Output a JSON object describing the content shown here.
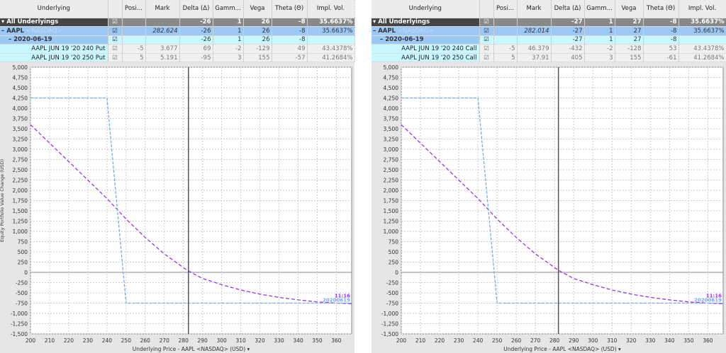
{
  "columns": [
    "Underlying",
    "",
    "Posi...",
    "Mark",
    "Delta (Δ)",
    "Gamm...",
    "Vega",
    "Theta (Θ)",
    "Impl. Vol."
  ],
  "panels": [
    {
      "rows": [
        {
          "type": "all",
          "name": "All Underlyings",
          "check": "☑",
          "pos": "",
          "mark": "",
          "delta": "-26",
          "gamma": "1",
          "vega": "26",
          "theta": "-8",
          "iv": "35.6637%"
        },
        {
          "type": "und",
          "name": "AAPL",
          "exchange": "<NASDAQ>",
          "check": "☑",
          "pos": "",
          "mark": "282.624",
          "delta": "-26",
          "gamma": "1",
          "vega": "26",
          "theta": "-8",
          "iv": "35.6637%"
        },
        {
          "type": "exp",
          "name": "2020-06-19",
          "check": "☑",
          "pos": "",
          "mark": "",
          "delta": "-26",
          "gamma": "1",
          "vega": "26",
          "theta": "-8",
          "iv": ""
        },
        {
          "type": "leg",
          "name": "AAPL JUN 19 '20 240 Put",
          "check": "☑",
          "pos": "-5",
          "mark": "3.677",
          "delta": "69",
          "gamma": "-2",
          "vega": "-129",
          "theta": "49",
          "iv": "43.4378%"
        },
        {
          "type": "leg",
          "name": "AAPL JUN 19 '20 250 Put",
          "check": "☑",
          "pos": "5",
          "mark": "5.191",
          "delta": "-95",
          "gamma": "3",
          "vega": "155",
          "theta": "-57",
          "iv": "41.2684%"
        }
      ],
      "underlying": 282.624,
      "ylabel": "Equity Portfolio Value Change (USD)"
    },
    {
      "rows": [
        {
          "type": "all",
          "name": "All Underlyings",
          "check": "☑",
          "pos": "",
          "mark": "",
          "delta": "-27",
          "gamma": "1",
          "vega": "27",
          "theta": "-8",
          "iv": "35.6637%"
        },
        {
          "type": "und",
          "name": "AAPL",
          "exchange": "<NASDAQ>",
          "check": "☑",
          "pos": "",
          "mark": "282.014",
          "delta": "-27",
          "gamma": "1",
          "vega": "27",
          "theta": "-8",
          "iv": "35.6637%"
        },
        {
          "type": "exp",
          "name": "2020-06-19",
          "check": "☑",
          "pos": "",
          "mark": "",
          "delta": "-27",
          "gamma": "1",
          "vega": "27",
          "theta": "-8",
          "iv": ""
        },
        {
          "type": "leg",
          "name": "AAPL JUN 19 '20 240 Call",
          "check": "☑",
          "pos": "-5",
          "mark": "46.379",
          "delta": "-432",
          "gamma": "-2",
          "vega": "-128",
          "theta": "53",
          "iv": "43.4378%"
        },
        {
          "type": "leg",
          "name": "AAPL JUN 19 '20 250 Call",
          "check": "☑",
          "pos": "5",
          "mark": "37.91",
          "delta": "405",
          "gamma": "3",
          "vega": "155",
          "theta": "-61",
          "iv": "41.2684%"
        }
      ],
      "underlying": 282.014,
      "ylabel": ""
    }
  ],
  "chart_data": [
    {
      "type": "line",
      "xlabel": "Underlying Price - AAPL <NASDAQ> (USD) ▾",
      "ylabel": "Equity Portfolio Value Change (USD)",
      "xlim": [
        200,
        368
      ],
      "ylim": [
        -1500,
        5000
      ],
      "xticks": [
        200,
        210,
        220,
        230,
        240,
        250,
        260,
        270,
        280,
        290,
        300,
        310,
        320,
        330,
        340,
        350,
        360
      ],
      "yticks": [
        5000,
        4750,
        4500,
        4250,
        4000,
        3750,
        3500,
        3250,
        3000,
        2750,
        2500,
        2250,
        2000,
        1750,
        1500,
        1250,
        1000,
        750,
        500,
        250,
        0,
        -250,
        -500,
        -750,
        -1000,
        -1250,
        -1500
      ],
      "series": [
        {
          "name": "11:16",
          "color": "#9933ee",
          "x": [
            200,
            210,
            220,
            230,
            240,
            250,
            260,
            270,
            282,
            290,
            300,
            310,
            320,
            330,
            340,
            350,
            360,
            368
          ],
          "y": [
            3600,
            3150,
            2700,
            2250,
            1800,
            1300,
            850,
            450,
            50,
            -150,
            -300,
            -430,
            -530,
            -610,
            -670,
            -720,
            -750,
            -765
          ]
        },
        {
          "name": "20200619",
          "color": "#77aaee",
          "x": [
            200,
            240,
            250,
            368
          ],
          "y": [
            4250,
            4250,
            -750,
            -750
          ]
        }
      ],
      "grid": true
    },
    {
      "type": "line",
      "xlabel": "Underlying Price - AAPL <NASDAQ> (USD) ▾",
      "ylabel": "",
      "xlim": [
        200,
        368
      ],
      "ylim": [
        -1500,
        5000
      ],
      "xticks": [
        200,
        210,
        220,
        230,
        240,
        250,
        260,
        270,
        280,
        290,
        300,
        310,
        320,
        330,
        340,
        350,
        360
      ],
      "yticks": [
        5000,
        4750,
        4500,
        4250,
        4000,
        3750,
        3500,
        3250,
        3000,
        2750,
        2500,
        2250,
        2000,
        1750,
        1500,
        1250,
        1000,
        750,
        500,
        250,
        0,
        -250,
        -500,
        -750,
        -1000,
        -1250,
        -1500
      ],
      "series": [
        {
          "name": "11:16",
          "color": "#9933ee",
          "x": [
            200,
            210,
            220,
            230,
            240,
            250,
            260,
            270,
            282,
            290,
            300,
            310,
            320,
            330,
            340,
            350,
            360,
            368
          ],
          "y": [
            3600,
            3150,
            2700,
            2250,
            1800,
            1300,
            850,
            450,
            50,
            -150,
            -300,
            -430,
            -530,
            -610,
            -670,
            -720,
            -750,
            -765
          ]
        },
        {
          "name": "20200619",
          "color": "#77aaee",
          "x": [
            200,
            240,
            250,
            368
          ],
          "y": [
            4250,
            4250,
            -750,
            -750
          ]
        }
      ],
      "grid": true
    }
  ]
}
